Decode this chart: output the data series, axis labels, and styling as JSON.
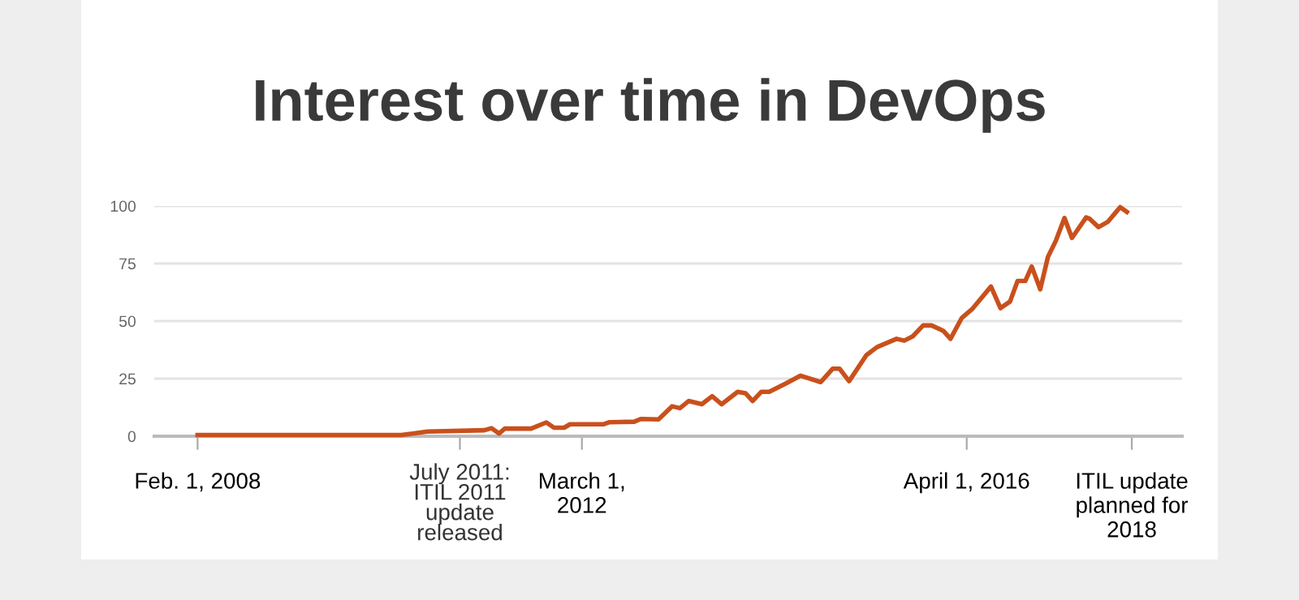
{
  "chart_data": {
    "type": "line",
    "title": "Interest over time in DevOps",
    "x": [
      "2008-02-01",
      "2010-04-01",
      "2010-07-11",
      "2011-02-17",
      "2011-03-16",
      "2011-04-15",
      "2011-05-07",
      "2011-08-17",
      "2011-10-15",
      "2011-11-14",
      "2011-12-23",
      "2012-01-15",
      "2012-05-25",
      "2012-06-16",
      "2012-09-20",
      "2012-10-15",
      "2012-12-23",
      "2013-02-14",
      "2013-03-16",
      "2013-04-19",
      "2013-06-09",
      "2013-07-19",
      "2013-08-25",
      "2013-10-26",
      "2013-11-25",
      "2013-12-23",
      "2014-01-26",
      "2014-02-25",
      "2014-04-29",
      "2014-06-27",
      "2014-09-13",
      "2014-10-29",
      "2014-11-25",
      "2015-01-01",
      "2015-03-09",
      "2015-04-19",
      "2015-07-04",
      "2015-08-03",
      "2015-09-05",
      "2015-10-15",
      "2015-11-17",
      "2016-01-01",
      "2016-01-29",
      "2016-03-13",
      "2016-04-22",
      "2016-07-04",
      "2016-08-10",
      "2016-09-16",
      "2016-10-15",
      "2016-11-14",
      "2016-12-09",
      "2017-01-11",
      "2017-02-10",
      "2017-03-13",
      "2017-04-15",
      "2017-05-14",
      "2017-07-08",
      "2017-07-22",
      "2017-08-25",
      "2017-10-01",
      "2017-11-17",
      "2017-12-13"
    ],
    "series": [
      {
        "color": "#c9501c",
        "values": [
          0.5,
          0.5,
          2,
          2.6,
          3.5,
          1.2,
          3.3,
          3.3,
          6,
          3.7,
          3.7,
          5.2,
          5.2,
          6.1,
          6.3,
          7.5,
          7.3,
          13,
          12.2,
          15.3,
          13.9,
          17.4,
          13.9,
          19.3,
          18.7,
          15.3,
          19.3,
          19.3,
          22.8,
          26.3,
          23.5,
          29.3,
          29.3,
          23.9,
          35.2,
          38.7,
          42.3,
          41.5,
          43.4,
          48.1,
          48.1,
          45.8,
          42.3,
          51.4,
          55.2,
          65,
          55.6,
          58.5,
          67.4,
          67.4,
          73.7,
          63.8,
          77.9,
          85,
          94.8,
          86.1,
          95,
          94.4,
          90.8,
          93.2,
          99.5,
          97.4
        ]
      }
    ],
    "xlim": [
      "2007-08-17",
      "2018-07-15"
    ],
    "xticks": [
      {
        "value": "2008-02-01",
        "label": "Feb. 1, 2008"
      },
      {
        "value": "2010-11-14",
        "label": null
      },
      {
        "value": "2012-03-01",
        "label": "March 1,\n2012"
      },
      {
        "value": "2016-04-01",
        "label": "April 1, 2016"
      },
      {
        "value": "2018-01-01",
        "label": "ITIL update\nplanned for\n2018"
      }
    ],
    "annotations": [
      "July 2011:\nITIL 2011\nupdate\nreleased"
    ],
    "ylim": [
      0,
      100
    ],
    "yticks": [
      0,
      25,
      50,
      75,
      100
    ],
    "grid": "y",
    "line_style": "solid",
    "marker": "none"
  }
}
